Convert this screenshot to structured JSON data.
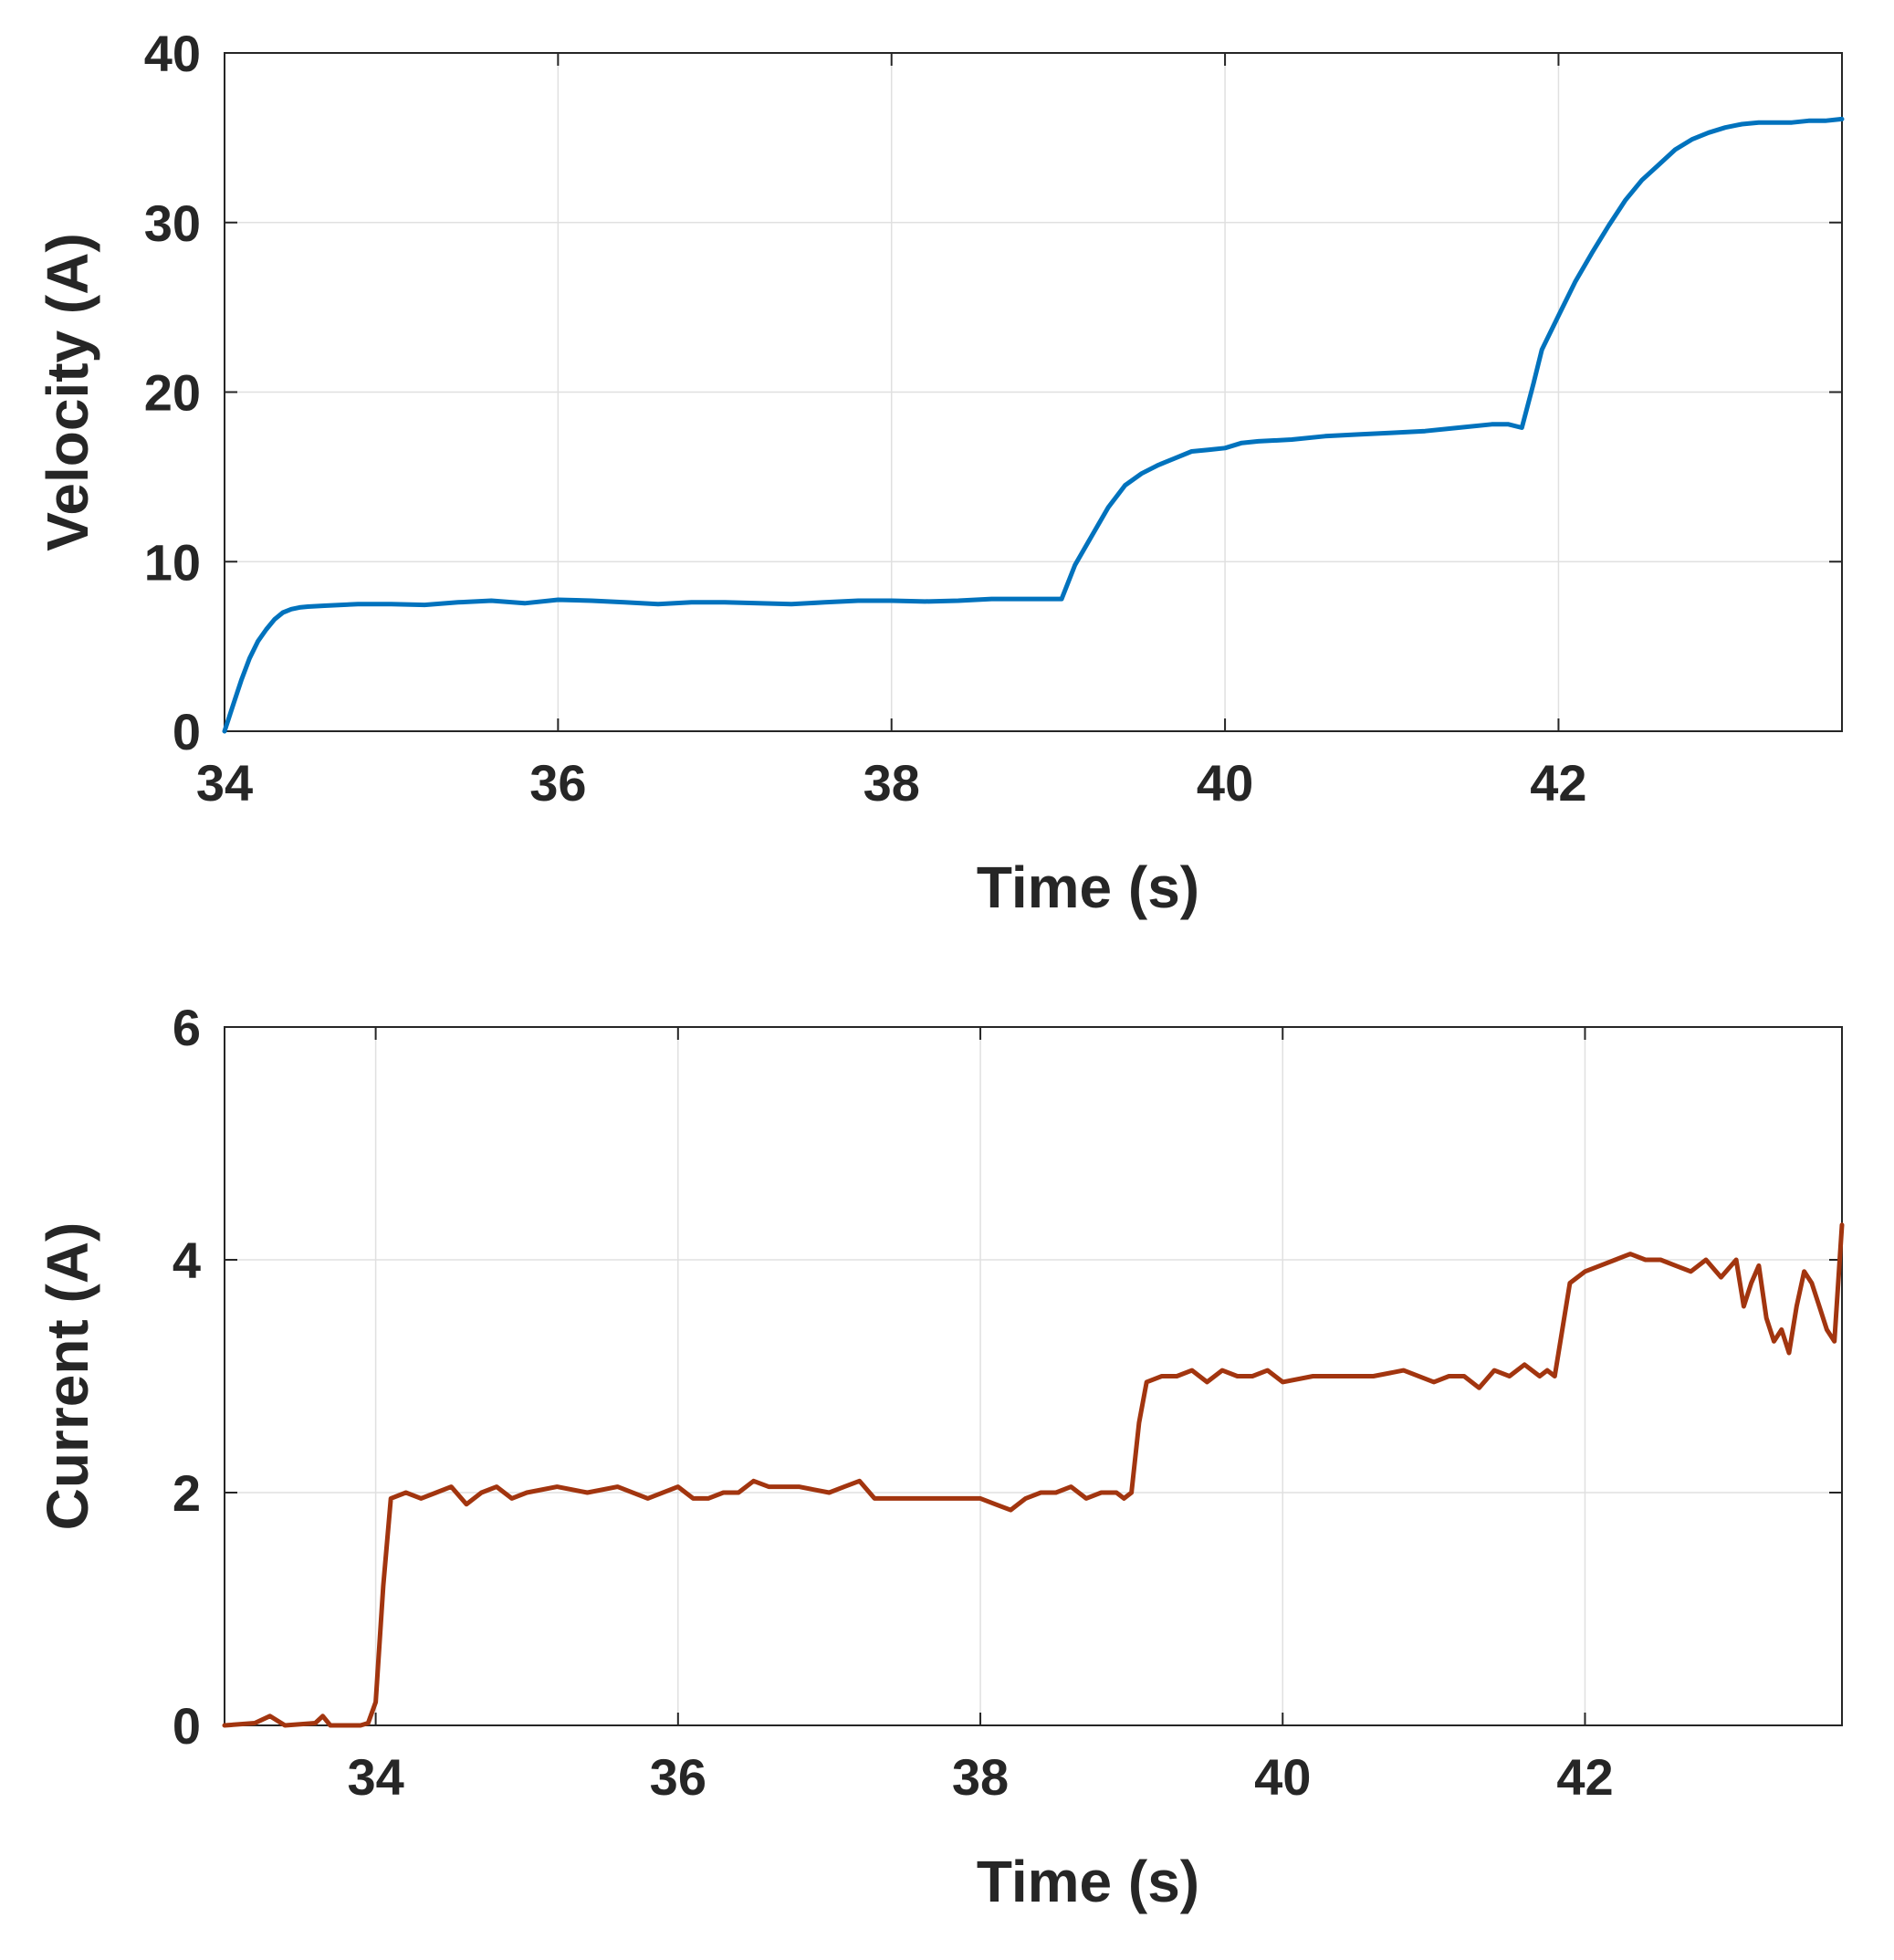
{
  "chart_data": [
    {
      "type": "line",
      "xlabel": "Time (s)",
      "ylabel": "Velocity (A)",
      "xlim": [
        34,
        43.7
      ],
      "ylim": [
        0,
        40
      ],
      "xticks": [
        34,
        36,
        38,
        40,
        42
      ],
      "yticks": [
        0,
        10,
        20,
        30,
        40
      ],
      "grid": true,
      "series": [
        {
          "name": "Velocity",
          "color": "#0072BD",
          "x": [
            34.0,
            34.05,
            34.1,
            34.15,
            34.2,
            34.25,
            34.3,
            34.35,
            34.4,
            34.45,
            34.5,
            34.6,
            34.7,
            34.8,
            35.0,
            35.2,
            35.4,
            35.6,
            35.8,
            36.0,
            36.2,
            36.4,
            36.6,
            36.8,
            37.0,
            37.2,
            37.4,
            37.6,
            37.8,
            38.0,
            38.2,
            38.4,
            38.6,
            38.8,
            39.02,
            39.1,
            39.2,
            39.3,
            39.4,
            39.5,
            39.6,
            39.7,
            39.8,
            39.9,
            40.0,
            40.1,
            40.2,
            40.4,
            40.6,
            40.8,
            41.0,
            41.2,
            41.4,
            41.6,
            41.7,
            41.78,
            41.85,
            41.9,
            42.0,
            42.1,
            42.2,
            42.3,
            42.4,
            42.5,
            42.6,
            42.7,
            42.8,
            42.9,
            43.0,
            43.1,
            43.2,
            43.3,
            43.4,
            43.5,
            43.6,
            43.7
          ],
          "y": [
            0.0,
            1.5,
            3.0,
            4.3,
            5.3,
            6.0,
            6.6,
            7.0,
            7.2,
            7.3,
            7.35,
            7.4,
            7.45,
            7.5,
            7.5,
            7.45,
            7.6,
            7.7,
            7.55,
            7.75,
            7.7,
            7.6,
            7.5,
            7.6,
            7.6,
            7.55,
            7.5,
            7.6,
            7.7,
            7.7,
            7.65,
            7.7,
            7.8,
            7.8,
            7.8,
            9.8,
            11.5,
            13.2,
            14.5,
            15.2,
            15.7,
            16.1,
            16.5,
            16.6,
            16.7,
            17.0,
            17.1,
            17.2,
            17.4,
            17.5,
            17.6,
            17.7,
            17.9,
            18.1,
            18.1,
            17.9,
            20.5,
            22.5,
            24.5,
            26.5,
            28.2,
            29.8,
            31.3,
            32.5,
            33.4,
            34.3,
            34.9,
            35.3,
            35.6,
            35.8,
            35.9,
            35.9,
            35.9,
            36.0,
            36.0,
            36.1
          ]
        }
      ]
    },
    {
      "type": "line",
      "xlabel": "Time (s)",
      "ylabel": "Current (A)",
      "xlim": [
        33,
        43.7
      ],
      "ylim": [
        0,
        6
      ],
      "xticks": [
        34,
        36,
        38,
        40,
        42
      ],
      "yticks": [
        0,
        2,
        4,
        6
      ],
      "grid": true,
      "series": [
        {
          "name": "Current",
          "color": "#A2350F",
          "x": [
            33.0,
            33.2,
            33.3,
            33.4,
            33.6,
            33.65,
            33.7,
            33.9,
            33.95,
            34.0,
            34.05,
            34.1,
            34.2,
            34.3,
            34.4,
            34.5,
            34.6,
            34.7,
            34.8,
            34.9,
            35.0,
            35.2,
            35.4,
            35.6,
            35.8,
            36.0,
            36.1,
            36.2,
            36.3,
            36.4,
            36.5,
            36.6,
            36.8,
            37.0,
            37.1,
            37.2,
            37.3,
            37.4,
            37.6,
            37.8,
            38.0,
            38.1,
            38.2,
            38.3,
            38.4,
            38.5,
            38.6,
            38.7,
            38.8,
            38.9,
            38.95,
            39.0,
            39.05,
            39.1,
            39.2,
            39.3,
            39.4,
            39.5,
            39.6,
            39.7,
            39.8,
            39.9,
            40.0,
            40.2,
            40.4,
            40.6,
            40.8,
            41.0,
            41.1,
            41.2,
            41.3,
            41.4,
            41.5,
            41.6,
            41.7,
            41.75,
            41.8,
            41.85,
            41.9,
            42.0,
            42.1,
            42.2,
            42.3,
            42.4,
            42.5,
            42.6,
            42.7,
            42.8,
            42.9,
            43.0,
            43.05,
            43.1,
            43.15,
            43.2,
            43.25,
            43.3,
            43.35,
            43.4,
            43.45,
            43.5,
            43.55,
            43.6,
            43.65,
            43.7
          ],
          "y": [
            0.0,
            0.02,
            0.08,
            0.0,
            0.02,
            0.08,
            0.0,
            0.0,
            0.02,
            0.2,
            1.2,
            1.95,
            2.0,
            1.95,
            2.0,
            2.05,
            1.9,
            2.0,
            2.05,
            1.95,
            2.0,
            2.05,
            2.0,
            2.05,
            1.95,
            2.05,
            1.95,
            1.95,
            2.0,
            2.0,
            2.1,
            2.05,
            2.05,
            2.0,
            2.05,
            2.1,
            1.95,
            1.95,
            1.95,
            1.95,
            1.95,
            1.9,
            1.85,
            1.95,
            2.0,
            2.0,
            2.05,
            1.95,
            2.0,
            2.0,
            1.95,
            2.0,
            2.6,
            2.95,
            3.0,
            3.0,
            3.05,
            2.95,
            3.05,
            3.0,
            3.0,
            3.05,
            2.95,
            3.0,
            3.0,
            3.0,
            3.05,
            2.95,
            3.0,
            3.0,
            2.9,
            3.05,
            3.0,
            3.1,
            3.0,
            3.05,
            3.0,
            3.4,
            3.8,
            3.9,
            3.95,
            4.0,
            4.05,
            4.0,
            4.0,
            3.95,
            3.9,
            4.0,
            3.85,
            4.0,
            3.6,
            3.8,
            3.95,
            3.5,
            3.3,
            3.4,
            3.2,
            3.6,
            3.9,
            3.8,
            3.6,
            3.4,
            3.3,
            4.3
          ]
        }
      ]
    }
  ]
}
